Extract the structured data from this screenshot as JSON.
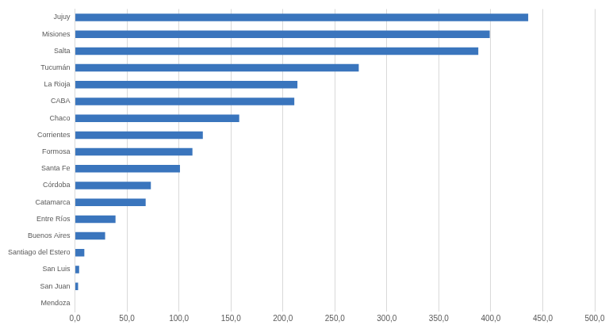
{
  "chart_data": {
    "type": "bar",
    "orientation": "horizontal",
    "categories": [
      "Jujuy",
      "Misiones",
      "Salta",
      "Tucumán",
      "La Rioja",
      "CABA",
      "Chaco",
      "Corrientes",
      "Formosa",
      "Santa Fe",
      "Córdoba",
      "Catamarca",
      "Entre Ríos",
      "Buenos Aires",
      "Santiago del Estero",
      "San Luis",
      "San Juan",
      "Mendoza"
    ],
    "values": [
      436,
      399,
      388,
      273,
      214,
      211,
      158,
      123,
      113,
      101,
      73,
      68,
      39,
      29,
      9,
      4,
      3,
      0
    ],
    "color": "#3a75bd",
    "xlim": [
      0,
      500
    ],
    "xticks": [
      {
        "value": 0,
        "label": "0,0"
      },
      {
        "value": 50,
        "label": "50,0"
      },
      {
        "value": 100,
        "label": "100,0"
      },
      {
        "value": 150,
        "label": "150,0"
      },
      {
        "value": 200,
        "label": "200,0"
      },
      {
        "value": 250,
        "label": "250,0"
      },
      {
        "value": 300,
        "label": "300,0"
      },
      {
        "value": 350,
        "label": "350,0"
      },
      {
        "value": 400,
        "label": "400,0"
      },
      {
        "value": 450,
        "label": "450,0"
      },
      {
        "value": 500,
        "label": "500,0"
      }
    ],
    "grid": true
  }
}
